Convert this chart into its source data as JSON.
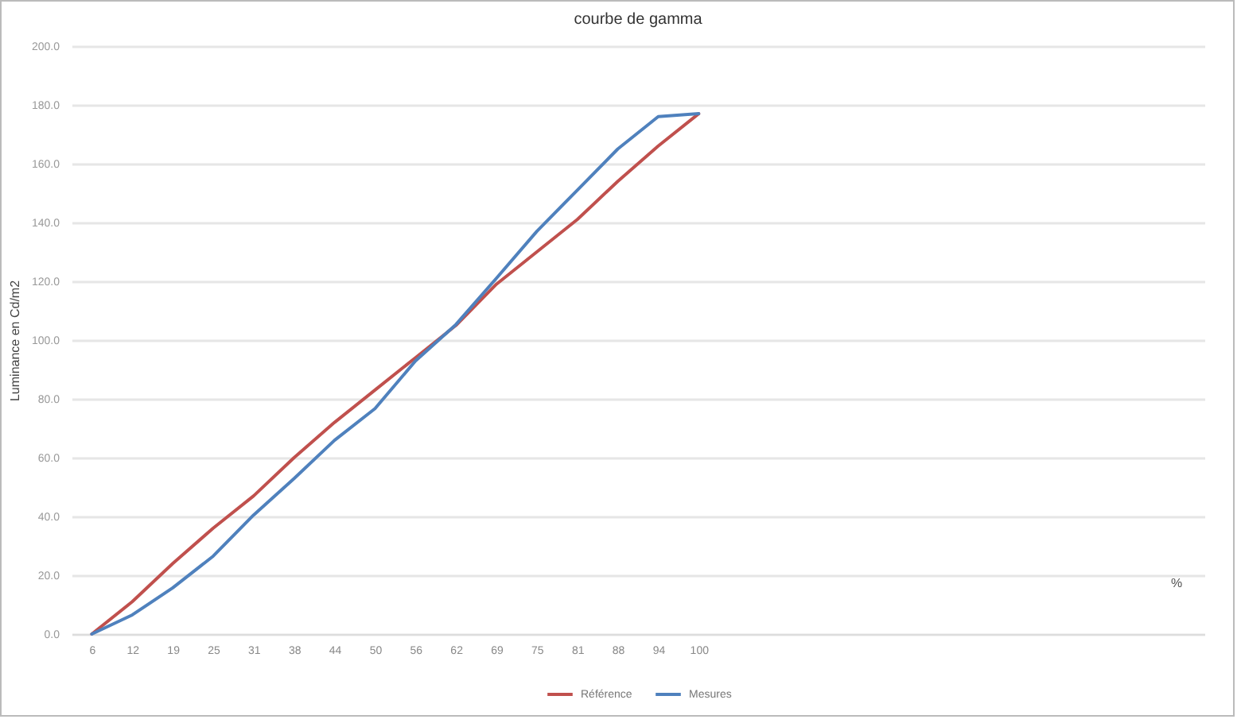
{
  "chart_data": {
    "type": "line",
    "title": "courbe de gamma",
    "ylabel": "Luminance en Cd/m2",
    "xlabel": "%",
    "categories": [
      "6",
      "12",
      "19",
      "25",
      "31",
      "38",
      "44",
      "50",
      "56",
      "62",
      "69",
      "75",
      "81",
      "88",
      "94",
      "100",
      null,
      null,
      null,
      null,
      null,
      null,
      null,
      null,
      null,
      null,
      null,
      null
    ],
    "series": [
      {
        "name": "Référence",
        "color": "#c0504d",
        "values": [
          0,
          11,
          24,
          36,
          47,
          60,
          72,
          83,
          94,
          105,
          119,
          130,
          141,
          154,
          166,
          177,
          null,
          null,
          null,
          null,
          null,
          null,
          null,
          null,
          null,
          null,
          null,
          null
        ]
      },
      {
        "name": "Mesures",
        "color": "#4f81bd",
        "values": [
          0,
          6.5,
          15.7,
          26.5,
          40.5,
          52.9,
          65.9,
          76.7,
          92.9,
          105.3,
          121,
          137,
          151,
          165,
          176,
          177,
          null,
          null,
          null,
          null,
          null,
          null,
          null,
          null,
          null,
          null,
          null,
          null
        ]
      }
    ],
    "ylim": [
      0,
      200
    ],
    "yticks": [
      {
        "value": 0,
        "label": "0.0"
      },
      {
        "value": 20,
        "label": "20.0"
      },
      {
        "value": 40,
        "label": "40.0"
      },
      {
        "value": 60,
        "label": "60.0"
      },
      {
        "value": 80,
        "label": "80.0"
      },
      {
        "value": 100,
        "label": "100.0"
      },
      {
        "value": 120,
        "label": "120.0"
      },
      {
        "value": 140,
        "label": "140.0"
      },
      {
        "value": 160,
        "label": "160.0"
      },
      {
        "value": 180,
        "label": "180.0"
      },
      {
        "value": 200,
        "label": "200.0"
      }
    ],
    "grid": "y",
    "legend": "bottom",
    "line_style": "solid",
    "marker": "none"
  }
}
